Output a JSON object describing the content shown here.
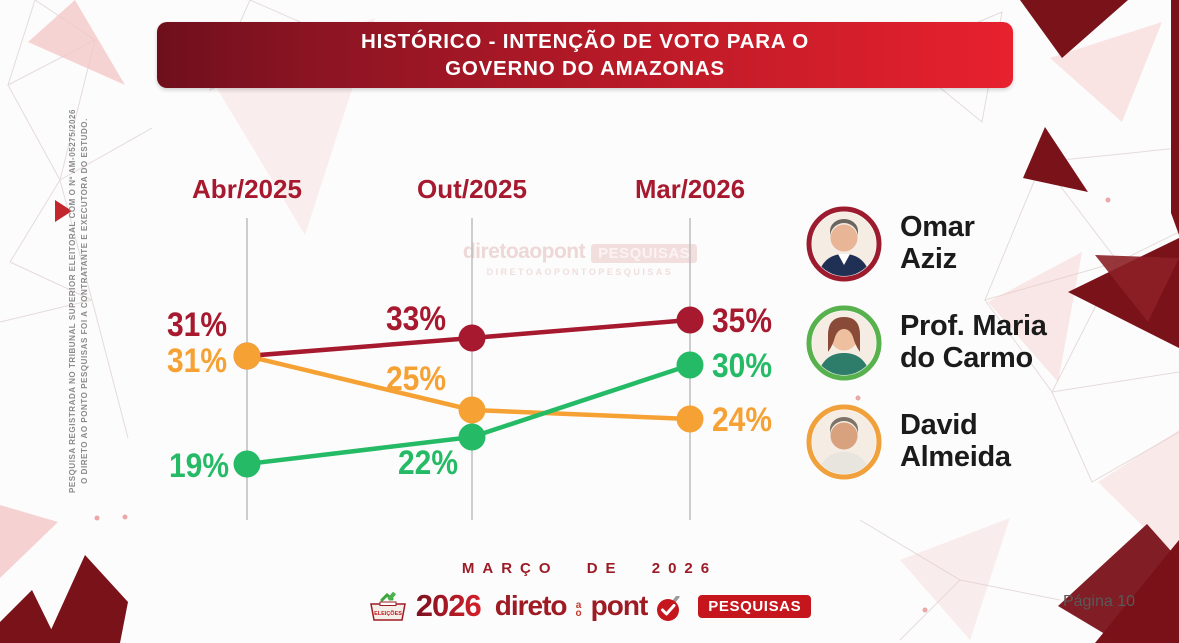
{
  "header": {
    "title_line1": "HISTÓRICO - INTENÇÃO DE VOTO PARA O",
    "title_line2": "GOVERNO DO AMAZONAS",
    "banner_gradient_left": "#6F0F1C",
    "banner_gradient_right": "#E8212E"
  },
  "side_note": {
    "line1": "PESQUISA REGISTRADA NO TRIBUNAL SUPERIOR ELEITORAL COM O Nº AM-05275/2026",
    "line2": "O DIRETO AO PONTO PESQUISAS FOI A CONTRATANTE E EXECUTORA DO ESTUDO."
  },
  "watermark": {
    "brand": "diretoaopont",
    "badge": "PESQUISAS",
    "subtext": "DIRETOAOPONTOPESQUISAS"
  },
  "chart_data": {
    "type": "line",
    "categories": [
      "Abr/2025",
      "Out/2025",
      "Mar/2026"
    ],
    "series": [
      {
        "name": "Omar Aziz",
        "color": "#A6192E",
        "values": [
          31,
          33,
          35
        ]
      },
      {
        "name": "David Almeida",
        "color": "#F6A133",
        "values": [
          31,
          25,
          24
        ]
      },
      {
        "name": "Prof. Maria do Carmo",
        "color": "#25BB66",
        "values": [
          19,
          22,
          30
        ]
      }
    ],
    "value_suffix": "%",
    "ylim": [
      15,
      38
    ],
    "grid": "vertical-category-axes-only",
    "y_axis_visible": false,
    "legend_position": "right",
    "category_label_color": "#A6192E"
  },
  "legend": {
    "items": [
      {
        "name_line1": "Omar",
        "name_line2": "Aziz",
        "full_name": "Omar Aziz",
        "ring_color": "#9C1B2E"
      },
      {
        "name_line1": "Prof. Maria",
        "name_line2": "do Carmo",
        "full_name": "Prof. Maria do Carmo",
        "ring_color": "#57B14C"
      },
      {
        "name_line1": "David",
        "name_line2": "Almeida",
        "full_name": "David Almeida",
        "ring_color": "#F0A13C"
      }
    ]
  },
  "footer": {
    "period_label": "MARÇO DE 2026",
    "logo": {
      "eleicoes": "ELEIÇÕES",
      "year": "2026",
      "direto": "direto",
      "ao": "ao",
      "pont": "pont",
      "pesquisas": "PESQUISAS"
    },
    "page_label": "Página 10"
  }
}
